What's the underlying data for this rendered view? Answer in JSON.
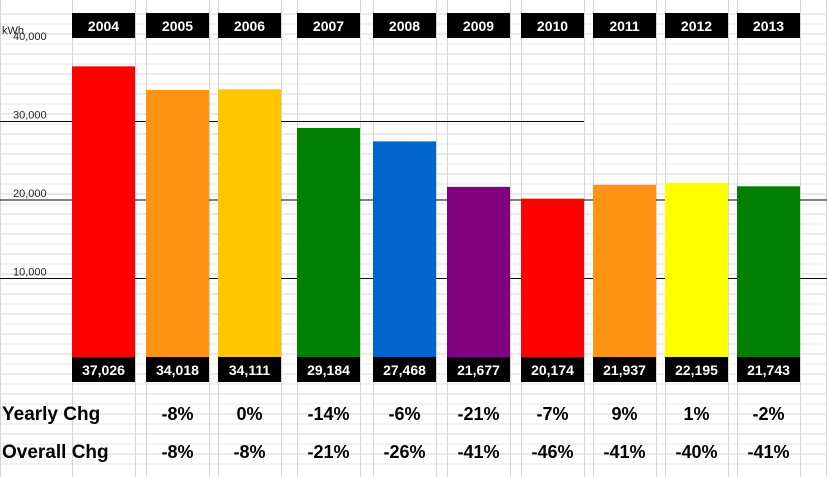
{
  "chart_data": {
    "type": "bar",
    "ylabel": "kWh",
    "ylim": [
      0,
      40000
    ],
    "yticks": [
      10000,
      20000,
      30000,
      40000
    ],
    "ytick_labels": [
      "10,000",
      "20,000",
      "30,000",
      "40,000"
    ],
    "categories": [
      "2004",
      "2005",
      "2006",
      "2007",
      "2008",
      "2009",
      "2010",
      "2011",
      "2012",
      "2013"
    ],
    "values": [
      37026,
      34018,
      34111,
      29184,
      27468,
      21677,
      20174,
      21937,
      22195,
      21743
    ],
    "value_labels": [
      "37,026",
      "34,018",
      "34,111",
      "29,184",
      "27,468",
      "21,677",
      "20,174",
      "21,937",
      "22,195",
      "21,743"
    ],
    "bar_colors": [
      "#ff0000",
      "#ff9312",
      "#ffc600",
      "#008000",
      "#0066cc",
      "#800080",
      "#ff0000",
      "#ff9312",
      "#ffff00",
      "#008000"
    ],
    "rows": [
      {
        "label": "Yearly Chg",
        "values": [
          "-8%",
          "0%",
          "-14%",
          "-6%",
          "-21%",
          "-7%",
          "9%",
          "1%",
          "-2%"
        ]
      },
      {
        "label": "Overall Chg",
        "values": [
          "-8%",
          "-8%",
          "-21%",
          "-26%",
          "-41%",
          "-46%",
          "-41%",
          "-40%",
          "-41%"
        ]
      }
    ]
  }
}
